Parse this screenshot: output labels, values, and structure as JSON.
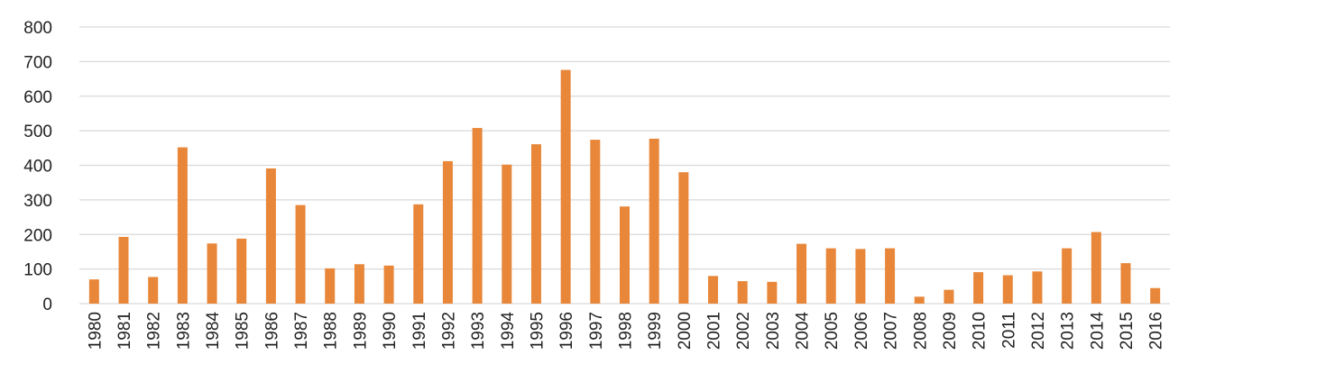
{
  "chart_data": {
    "type": "bar",
    "title": "",
    "xlabel": "",
    "ylabel": "",
    "ylim": [
      0,
      800
    ],
    "yticks": [
      0,
      100,
      200,
      300,
      400,
      500,
      600,
      700,
      800
    ],
    "grid": true,
    "legend": "none",
    "bar_color": "#e8873a",
    "categories": [
      "1980",
      "1981",
      "1982",
      "1983",
      "1984",
      "1985",
      "1986",
      "1987",
      "1988",
      "1989",
      "1990",
      "1991",
      "1992",
      "1993",
      "1994",
      "1995",
      "1996",
      "1997",
      "1998",
      "1999",
      "2000",
      "2001",
      "2002",
      "2003",
      "2004",
      "2005",
      "2006",
      "2007",
      "2008",
      "2009",
      "2010",
      "2011",
      "2012",
      "2013",
      "2014",
      "2015",
      "2016"
    ],
    "values": [
      70,
      193,
      77,
      452,
      174,
      188,
      391,
      285,
      102,
      114,
      110,
      287,
      412,
      508,
      402,
      461,
      676,
      474,
      281,
      477,
      380,
      80,
      65,
      63,
      173,
      160,
      158,
      160,
      20,
      40,
      91,
      82,
      93,
      160,
      207,
      117,
      45
    ]
  }
}
